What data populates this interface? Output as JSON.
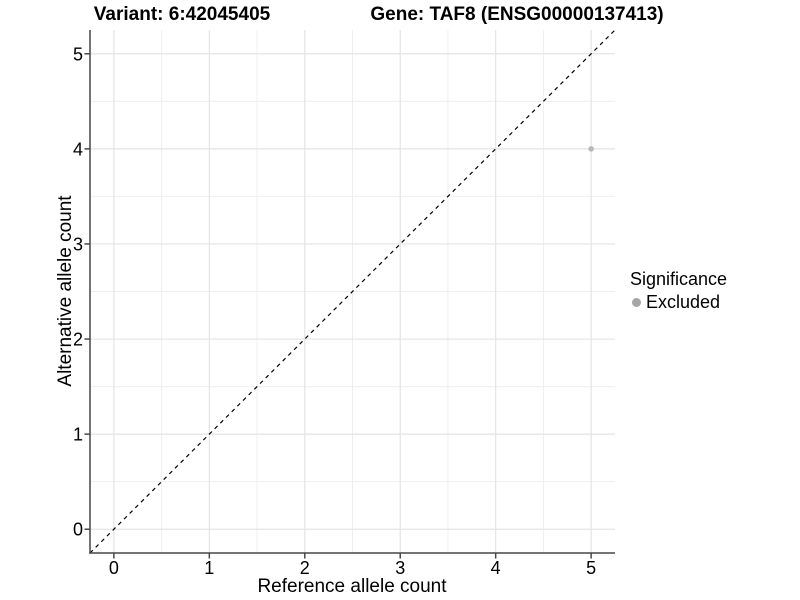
{
  "chart_data": {
    "type": "scatter",
    "titles": {
      "variant": "Variant: 6:42045405",
      "gene": "Gene: TAF8 (ENSG00000137413)"
    },
    "xlabel": "Reference allele count",
    "ylabel": "Alternative allele count",
    "xlim": [
      -0.25,
      5.25
    ],
    "ylim": [
      -0.25,
      5.25
    ],
    "xticks": [
      0,
      1,
      2,
      3,
      4,
      5
    ],
    "yticks": [
      0,
      1,
      2,
      3,
      4,
      5
    ],
    "grid": "major and minor gridlines, minor at 0.5 steps",
    "points": [
      {
        "x": 5,
        "y": 4,
        "significance": "Excluded"
      }
    ],
    "reference_line": {
      "slope": 1,
      "intercept": 0,
      "linetype": "dashed",
      "color": "#000000"
    },
    "legend": {
      "position": "right",
      "title": "Significance",
      "items": [
        {
          "label": "Excluded",
          "color": "#a6a6a6"
        }
      ]
    }
  },
  "style": {
    "background": "#ffffff",
    "text_color": "#000000",
    "axis_line_color": "#474747",
    "grid_major_color": "#e4e4e4",
    "grid_minor_color": "#efefef",
    "point_color": "#b9b9b9"
  }
}
